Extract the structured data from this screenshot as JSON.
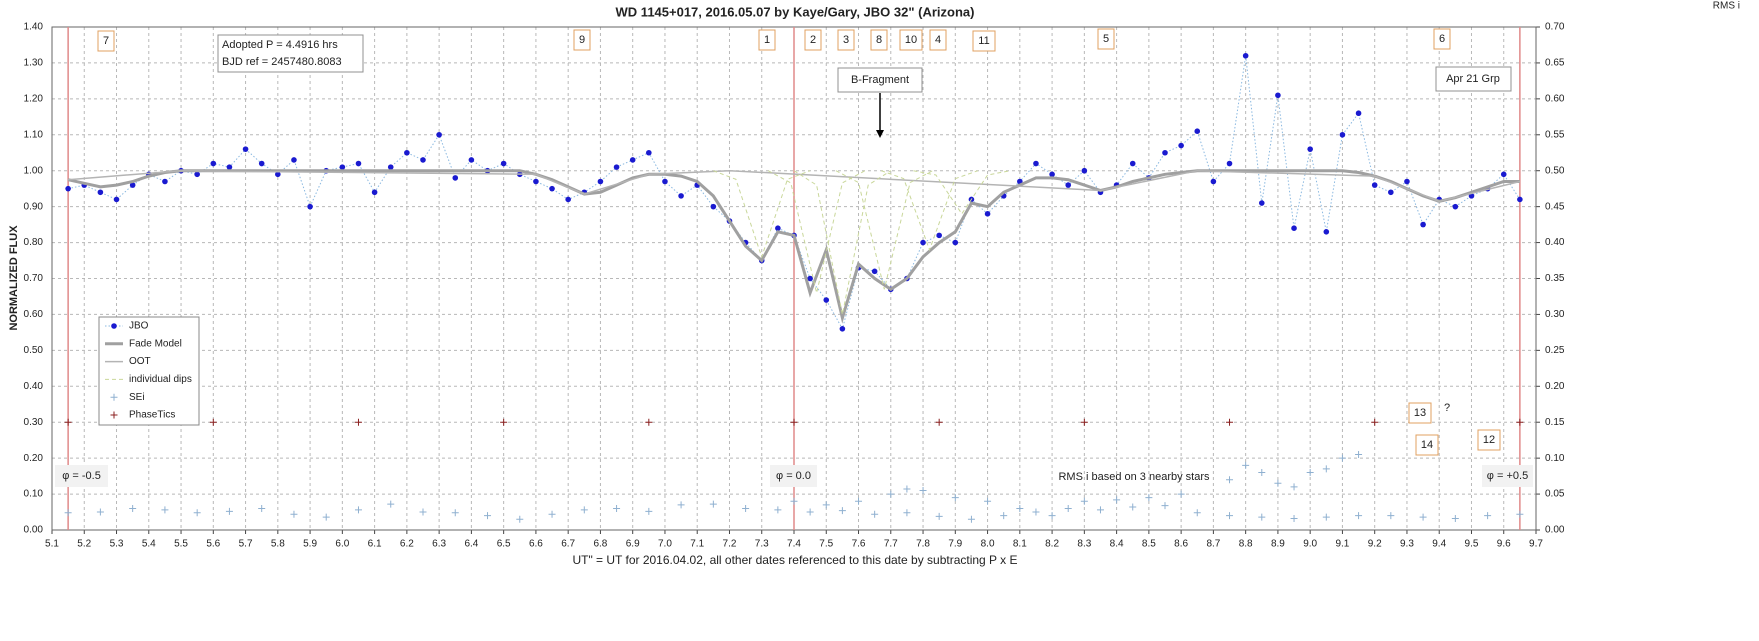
{
  "chart_data": {
    "type": "line",
    "title": "WD 1145+017, 2016.05.07  by Kaye/Gary, JBO 32\" (Arizona)",
    "y_label": "NORMALIZED FLUX",
    "y2_label": "RMS i",
    "x_label": "UT\" = UT for 2016.04.02, all other dates referenced to this date by subtracting P x E",
    "xlim": [
      5.1,
      9.7
    ],
    "xticks": [
      5.1,
      5.2,
      5.3,
      5.4,
      5.5,
      5.6,
      5.7,
      5.8,
      5.9,
      {
        "value": 6,
        "label": "6.0"
      },
      6.1,
      6.2,
      6.3,
      6.4,
      6.5,
      6.6,
      6.7,
      6.8,
      6.9,
      {
        "value": 7,
        "label": "7.0"
      },
      7.1,
      7.2,
      7.3,
      7.4,
      7.5,
      7.6,
      7.7,
      7.8,
      7.9,
      {
        "value": 8,
        "label": "8.0"
      },
      8.1,
      8.2,
      8.3,
      8.4,
      8.5,
      8.6,
      8.7,
      8.8,
      8.9,
      {
        "value": 9,
        "label": "9.0"
      },
      9.1,
      9.2,
      9.3,
      9.4,
      9.5,
      9.6,
      9.7
    ],
    "ylim": [
      0,
      1.4
    ],
    "yticks": [
      {
        "value": 0,
        "label": "0.00"
      },
      {
        "value": 0.1,
        "label": "0.10"
      },
      {
        "value": 0.2,
        "label": "0.20"
      },
      {
        "value": 0.3,
        "label": "0.30"
      },
      {
        "value": 0.4,
        "label": "0.40"
      },
      {
        "value": 0.5,
        "label": "0.50"
      },
      {
        "value": 0.6,
        "label": "0.60"
      },
      {
        "value": 0.7,
        "label": "0.70"
      },
      {
        "value": 0.8,
        "label": "0.80"
      },
      {
        "value": 0.9,
        "label": "0.90"
      },
      {
        "value": 1,
        "label": "1.00"
      },
      {
        "value": 1.1,
        "label": "1.10"
      },
      {
        "value": 1.2,
        "label": "1.20"
      },
      {
        "value": 1.3,
        "label": "1.30"
      },
      {
        "value": 1.4,
        "label": "1.40"
      }
    ],
    "y2lim": [
      0,
      0.7
    ],
    "y2ticks": [
      {
        "value": 0,
        "label": "0.00"
      },
      {
        "value": 0.05,
        "label": "0.05"
      },
      {
        "value": 0.1,
        "label": "0.10"
      },
      {
        "value": 0.15,
        "label": "0.15"
      },
      {
        "value": 0.2,
        "label": "0.20"
      },
      {
        "value": 0.25,
        "label": "0.25"
      },
      {
        "value": 0.3,
        "label": "0.30"
      },
      {
        "value": 0.35,
        "label": "0.35"
      },
      {
        "value": 0.4,
        "label": "0.40"
      },
      {
        "value": 0.45,
        "label": "0.45"
      },
      {
        "value": 0.5,
        "label": "0.50"
      },
      {
        "value": 0.55,
        "label": "0.55"
      },
      {
        "value": 0.6,
        "label": "0.60"
      },
      {
        "value": 0.65,
        "label": "0.65"
      },
      {
        "value": 0.7,
        "label": "0.70"
      }
    ],
    "grid": true,
    "legend": "lower left",
    "phase_lines": [
      5.15,
      7.4,
      9.65
    ],
    "phase_line_color": "#e08a8a",
    "x": [
      5.15,
      5.2,
      5.25,
      5.3,
      5.35,
      5.4,
      5.45,
      5.5,
      5.55,
      5.6,
      5.65,
      5.7,
      5.75,
      5.8,
      5.85,
      5.9,
      5.95,
      6,
      6.05,
      6.1,
      6.15,
      6.2,
      6.25,
      6.3,
      6.35,
      6.4,
      6.45,
      6.5,
      6.55,
      6.6,
      6.65,
      6.7,
      6.75,
      6.8,
      6.85,
      6.9,
      6.95,
      7,
      7.05,
      7.1,
      7.15,
      7.2,
      7.25,
      7.3,
      7.35,
      7.4,
      7.45,
      7.5,
      7.55,
      7.6,
      7.65,
      7.7,
      7.75,
      7.8,
      7.85,
      7.9,
      7.95,
      8,
      8.05,
      8.1,
      8.15,
      8.2,
      8.25,
      8.3,
      8.35,
      8.4,
      8.45,
      8.5,
      8.55,
      8.6,
      8.65,
      8.7,
      8.75,
      8.8,
      8.85,
      8.9,
      8.95,
      9,
      9.05,
      9.1,
      9.15,
      9.2,
      9.25,
      9.3,
      9.35,
      9.4,
      9.45,
      9.5,
      9.55,
      9.6,
      9.65
    ],
    "series": [
      {
        "name": "JBO",
        "color": "#1a1ad0",
        "line_color": "#8ab8e0",
        "line_style": "dotted",
        "marker": "dot",
        "values": [
          0.95,
          0.96,
          0.94,
          0.92,
          0.96,
          0.99,
          0.97,
          1.0,
          0.99,
          1.02,
          1.01,
          1.06,
          1.02,
          0.99,
          1.03,
          0.9,
          1.0,
          1.01,
          1.02,
          0.94,
          1.01,
          1.05,
          1.03,
          1.1,
          0.98,
          1.03,
          1.0,
          1.02,
          0.99,
          0.97,
          0.95,
          0.92,
          0.94,
          0.97,
          1.01,
          1.03,
          1.05,
          0.97,
          0.93,
          0.96,
          0.9,
          0.86,
          0.8,
          0.75,
          0.84,
          0.82,
          0.7,
          0.64,
          0.56,
          0.73,
          0.72,
          0.67,
          0.7,
          0.8,
          0.82,
          0.8,
          0.92,
          0.88,
          0.93,
          0.97,
          1.02,
          0.99,
          0.96,
          1.0,
          0.94,
          0.96,
          1.02,
          0.98,
          1.05,
          1.07,
          1.11,
          0.97,
          1.02,
          1.32,
          0.91,
          1.21,
          0.84,
          1.06,
          0.83,
          1.1,
          1.16,
          0.96,
          0.94,
          0.97,
          0.85,
          0.92,
          0.9,
          0.93,
          0.95,
          0.99,
          0.92
        ]
      },
      {
        "name": "Fade Model",
        "color": "#a0a0a0",
        "line_style": "solid",
        "line_width": 3,
        "marker": "none",
        "values": [
          0.975,
          0.965,
          0.955,
          0.96,
          0.97,
          0.985,
          0.995,
          1.0,
          1.0,
          1.0,
          1.0,
          1.0,
          1.0,
          1.0,
          1.0,
          1.0,
          1.0,
          1.0,
          1.0,
          1.0,
          1.0,
          1.0,
          1.0,
          1.0,
          1.0,
          1.0,
          1.0,
          1.0,
          1.0,
          0.99,
          0.975,
          0.955,
          0.935,
          0.94,
          0.96,
          0.98,
          0.99,
          0.99,
          0.985,
          0.97,
          0.93,
          0.86,
          0.79,
          0.75,
          0.83,
          0.82,
          0.66,
          0.78,
          0.59,
          0.74,
          0.7,
          0.67,
          0.7,
          0.76,
          0.8,
          0.83,
          0.91,
          0.9,
          0.94,
          0.96,
          0.98,
          0.98,
          0.975,
          0.96,
          0.945,
          0.955,
          0.97,
          0.98,
          0.99,
          0.995,
          1.0,
          1.0,
          1.0,
          1.0,
          1.0,
          1.0,
          1.0,
          1.0,
          1.0,
          1.0,
          0.995,
          0.985,
          0.97,
          0.95,
          0.93,
          0.915,
          0.925,
          0.94,
          0.955,
          0.97,
          0.97
        ]
      },
      {
        "name": "OOT",
        "color": "#b4b4b4",
        "line_style": "solid",
        "line_width": 1.5,
        "marker": "none",
        "x": [
          5.15,
          5.5,
          6.6,
          6.75,
          6.95,
          7.2,
          8.35,
          8.65,
          9.2,
          9.4,
          9.65
        ],
        "values": [
          0.975,
          1.0,
          0.99,
          0.935,
          0.99,
          1.0,
          0.945,
          1.0,
          0.985,
          0.915,
          0.97
        ]
      },
      {
        "name": "individual dips",
        "color": "#c9d79a",
        "line_style": "dashed",
        "line_width": 1,
        "marker": "none",
        "x": [
          7.15,
          7.22,
          7.26,
          7.3,
          7.34,
          7.38,
          7.45,
          null,
          7.32,
          7.39,
          7.43,
          7.47,
          7.51,
          7.55,
          7.62,
          null,
          7.4,
          7.47,
          7.51,
          7.55,
          7.59,
          7.63,
          7.7,
          null,
          7.53,
          7.6,
          7.64,
          7.68,
          7.72,
          7.76,
          7.83,
          null,
          7.67,
          7.74,
          7.78,
          7.82,
          7.86,
          7.9,
          7.97,
          null,
          7.77,
          7.84,
          7.88,
          7.92,
          7.96,
          8.0,
          8.07
        ],
        "values": [
          1,
          0.976,
          0.868,
          0.76,
          0.868,
          0.976,
          1,
          null,
          1,
          0.966,
          0.813,
          0.66,
          0.813,
          0.966,
          1,
          null,
          1,
          0.96,
          0.78,
          0.6,
          0.78,
          0.96,
          1,
          null,
          1,
          0.967,
          0.819,
          0.67,
          0.819,
          0.967,
          1,
          null,
          1,
          0.978,
          0.879,
          0.78,
          0.879,
          0.978,
          1,
          null,
          1,
          0.988,
          0.934,
          0.88,
          0.934,
          0.988,
          1
        ]
      },
      {
        "name": "SEi",
        "color": "#8fb0d0",
        "line_style": "none",
        "marker": "plus",
        "axis": "y2",
        "x": [
          5.15,
          5.25,
          5.35,
          5.45,
          5.55,
          5.65,
          5.75,
          5.85,
          5.95,
          6.05,
          6.15,
          6.25,
          6.35,
          6.45,
          6.55,
          6.65,
          6.75,
          6.85,
          6.95,
          7.05,
          7.15,
          7.25,
          7.35,
          7.45,
          7.55,
          7.65,
          7.75,
          7.85,
          7.95,
          8.05,
          8.15,
          8.25,
          8.35,
          8.45,
          8.55,
          8.65,
          8.75,
          8.85,
          8.95,
          9.05,
          9.15,
          9.25,
          9.35,
          9.45,
          9.55,
          9.65,
          7.4,
          7.5,
          7.6,
          7.7,
          7.75,
          7.8,
          7.9,
          8.0,
          8.1,
          8.2,
          8.3,
          8.4,
          8.5,
          8.6,
          8.75,
          8.8,
          8.85,
          8.9,
          8.95,
          9.0,
          9.05,
          9.1,
          9.15
        ],
        "values": [
          0.024,
          0.025,
          0.03,
          0.028,
          0.024,
          0.026,
          0.03,
          0.022,
          0.018,
          0.028,
          0.036,
          0.025,
          0.024,
          0.02,
          0.015,
          0.022,
          0.028,
          0.03,
          0.026,
          0.035,
          0.036,
          0.03,
          0.028,
          0.025,
          0.027,
          0.022,
          0.024,
          0.019,
          0.015,
          0.02,
          0.025,
          0.03,
          0.028,
          0.032,
          0.034,
          0.024,
          0.02,
          0.018,
          0.016,
          0.018,
          0.02,
          0.02,
          0.018,
          0.016,
          0.02,
          0.022,
          0.04,
          0.035,
          0.04,
          0.05,
          0.057,
          0.055,
          0.045,
          0.04,
          0.03,
          0.02,
          0.04,
          0.042,
          0.045,
          0.05,
          0.07,
          0.09,
          0.08,
          0.065,
          0.06,
          0.08,
          0.085,
          0.1,
          0.105
        ]
      },
      {
        "name": "PhaseTics",
        "color": "#8b2020",
        "line_style": "none",
        "marker": "plus",
        "x": [
          5.15,
          5.6,
          6.05,
          6.5,
          6.95,
          7.4,
          7.85,
          8.3,
          8.75,
          9.2,
          9.65
        ],
        "values": [
          0.3,
          0.3,
          0.3,
          0.3,
          0.3,
          0.3,
          0.3,
          0.3,
          0.3,
          0.3,
          0.3
        ]
      }
    ],
    "dip_labels": [
      "7",
      "9",
      "1",
      "2",
      "3",
      "8",
      "10",
      "4",
      "11",
      "5",
      "6",
      "13",
      "14",
      "12"
    ],
    "question_mark": "?",
    "info": [
      "Adopted P = 4.4916 hrs",
      "BJD ref = 2457480.8083"
    ],
    "fragment_label": "B-Fragment",
    "group_label": "Apr 21 Grp",
    "phase_labels": [
      "φ = -0.5",
      "φ = 0.0",
      "φ = +0.5"
    ],
    "rms_note": "RMS i based on 3 nearby stars"
  }
}
